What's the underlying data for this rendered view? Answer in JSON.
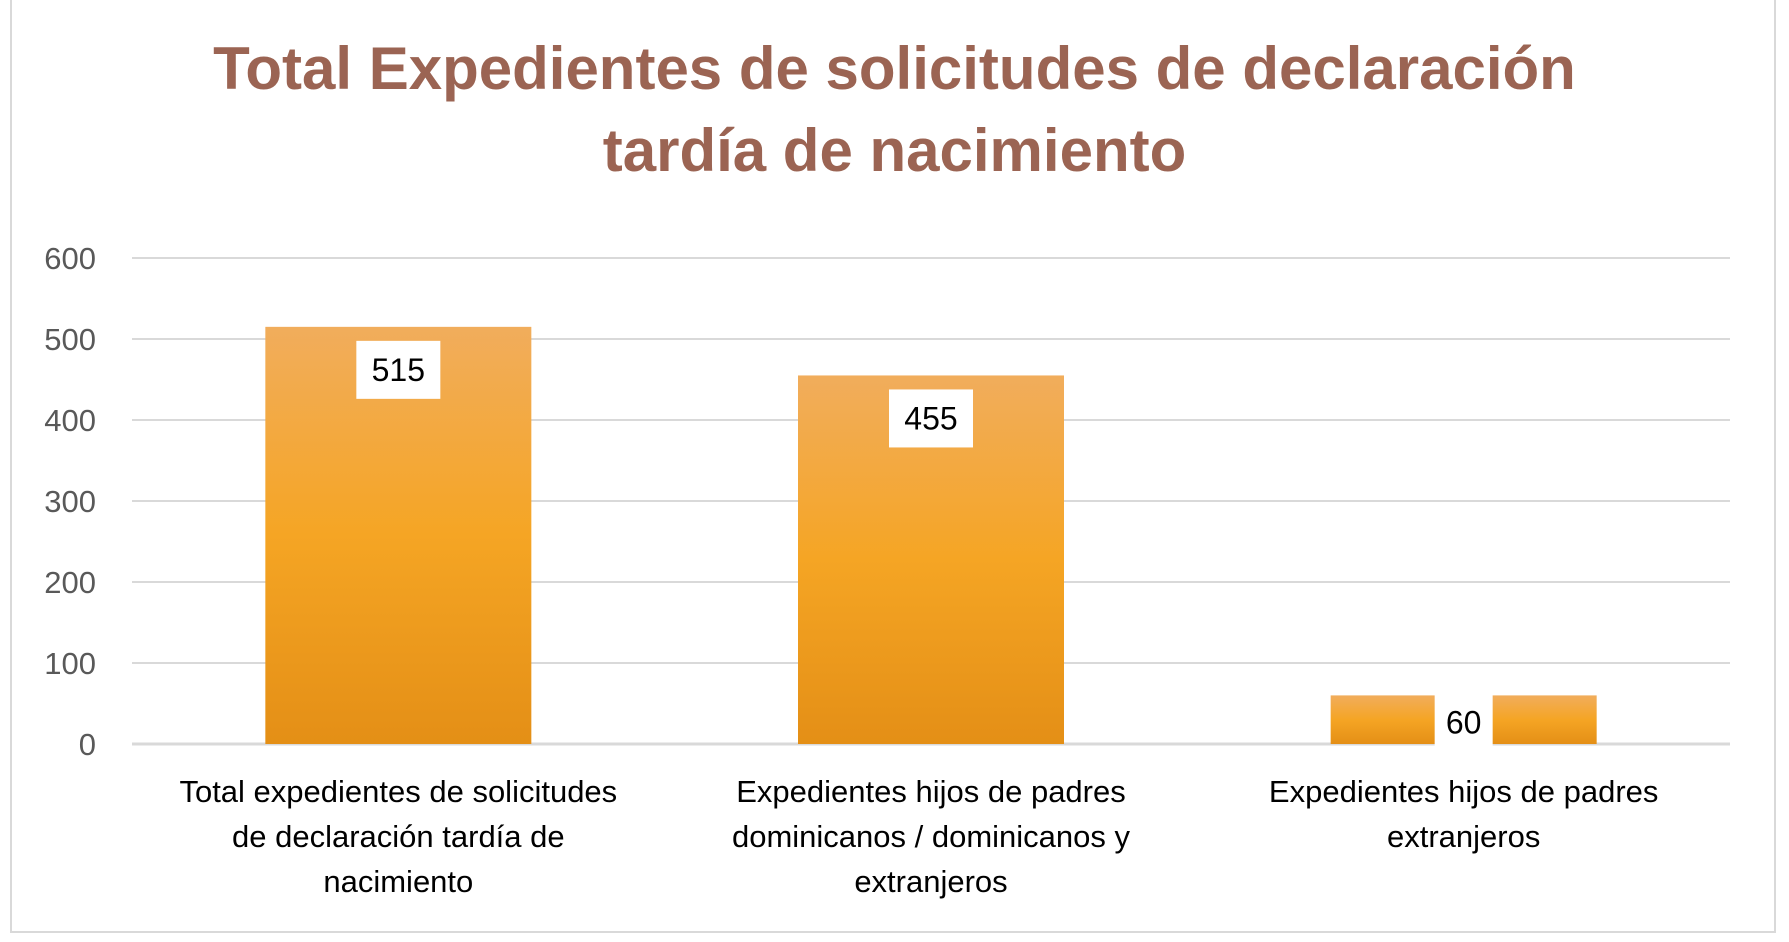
{
  "colors": {
    "bar_top": "#f1ad5c",
    "bar_mid": "#f5a524",
    "bar_bottom": "#e48f16",
    "title": "#9b6453",
    "grid": "#d9d9d9"
  },
  "chart_data": {
    "type": "bar",
    "title_lines": [
      "Total Expedientes de solicitudes de declaración",
      "tardía de nacimiento"
    ],
    "categories": [
      [
        "Total expedientes de solicitudes",
        "de declaración tardía de",
        "nacimiento"
      ],
      [
        "Expedientes hijos de padres",
        "dominicanos / dominicanos y",
        "extranjeros"
      ],
      [
        "Expedientes hijos de padres",
        "extranjeros"
      ]
    ],
    "values": [
      515,
      455,
      60
    ],
    "data_labels": [
      "515",
      "455",
      "60"
    ],
    "ylim": [
      0,
      600
    ],
    "yticks": [
      0,
      100,
      200,
      300,
      400,
      500,
      600
    ],
    "grid": true,
    "legend": "none"
  }
}
